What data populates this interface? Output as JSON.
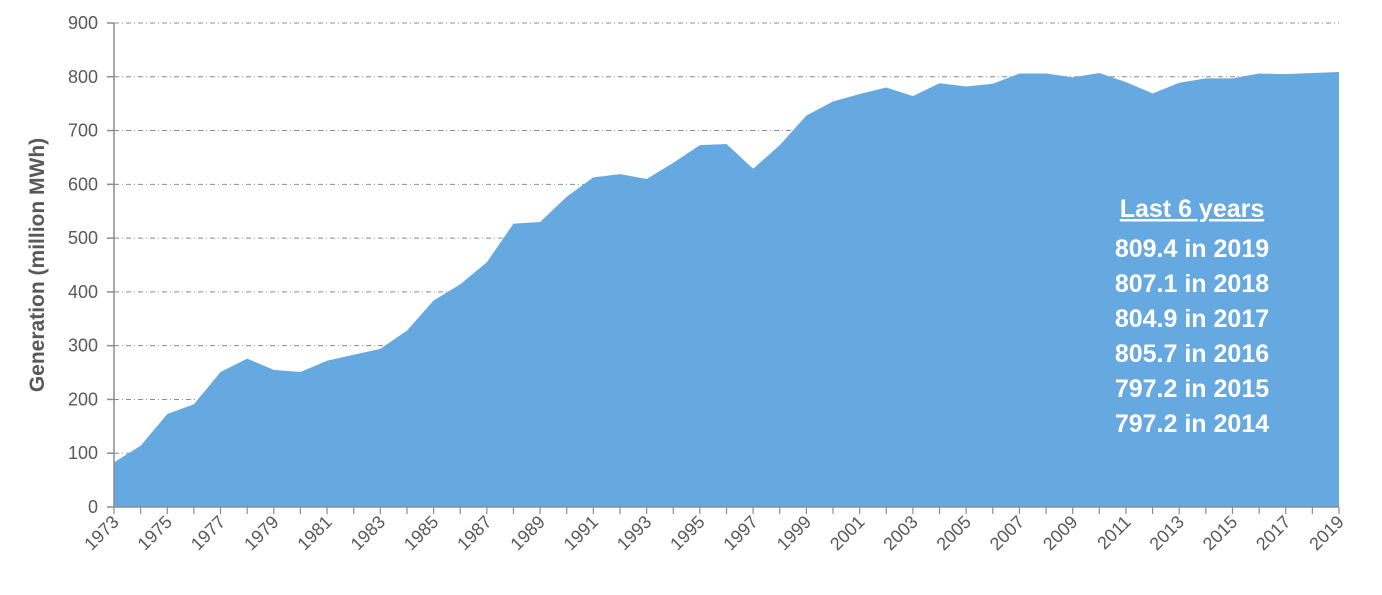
{
  "chart_data": {
    "type": "area",
    "title": "",
    "xlabel": "",
    "ylabel": "Generation (million MWh)",
    "ylim": [
      0,
      900
    ],
    "yticks": [
      "0",
      "100",
      "200",
      "300",
      "400",
      "500",
      "600",
      "700",
      "800",
      "900"
    ],
    "xlim": [
      1973,
      2019
    ],
    "xticks": [
      "1973",
      "1975",
      "1977",
      "1979",
      "1981",
      "1983",
      "1985",
      "1987",
      "1989",
      "1991",
      "1993",
      "1995",
      "1997",
      "1999",
      "2001",
      "2003",
      "2005",
      "2007",
      "2009",
      "2011",
      "2013",
      "2015",
      "2017",
      "2019"
    ],
    "grid": true,
    "legend": "none",
    "fill_color": "#66A9E0",
    "series": [
      {
        "x": [
          1973,
          1974,
          1975,
          1976,
          1977,
          1978,
          1979,
          1980,
          1981,
          1982,
          1983,
          1984,
          1985,
          1986,
          1987,
          1988,
          1989,
          1990,
          1991,
          1992,
          1993,
          1994,
          1995,
          1996,
          1997,
          1998,
          1999,
          2000,
          2001,
          2002,
          2003,
          2004,
          2005,
          2006,
          2007,
          2008,
          2009,
          2010,
          2011,
          2012,
          2013,
          2014,
          2015,
          2016,
          2017,
          2018,
          2019
        ],
        "values": [
          83,
          114,
          173,
          191,
          251,
          276,
          255,
          251,
          272,
          283,
          294,
          328,
          384,
          414,
          455,
          527,
          530,
          577,
          613,
          619,
          610,
          640,
          673,
          675,
          629,
          673,
          728,
          754,
          768,
          780,
          764,
          788,
          782,
          787,
          806,
          806,
          799,
          807,
          790,
          769,
          789,
          797,
          797,
          806,
          805,
          807,
          809
        ]
      }
    ],
    "annotation": {
      "title": "Last 6 years",
      "lines": [
        "809.4 in 2019",
        "807.1 in 2018",
        "804.9 in 2017",
        "805.7 in 2016",
        "797.2 in 2015",
        "797.2 in 2014"
      ]
    }
  }
}
